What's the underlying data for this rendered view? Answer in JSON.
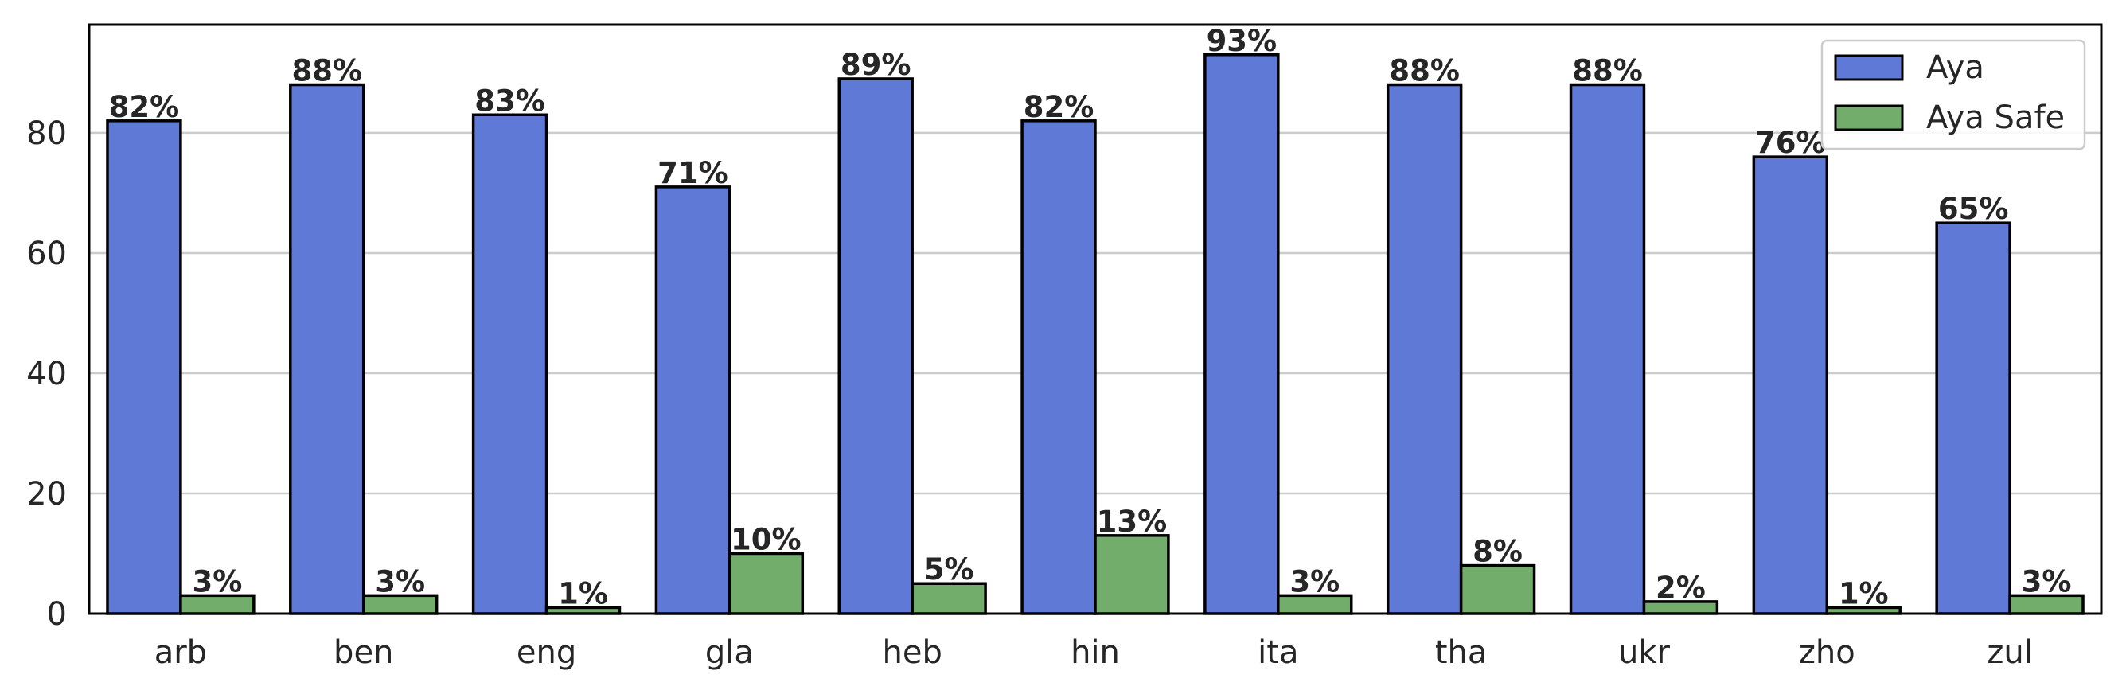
{
  "chart_data": {
    "type": "bar",
    "categories": [
      "arb",
      "ben",
      "eng",
      "gla",
      "heb",
      "hin",
      "ita",
      "tha",
      "ukr",
      "zho",
      "zul"
    ],
    "series": [
      {
        "name": "Aya",
        "values": [
          82,
          88,
          83,
          71,
          89,
          82,
          93,
          88,
          88,
          76,
          65
        ],
        "labels": [
          "82%",
          "88%",
          "83%",
          "71%",
          "89%",
          "82%",
          "93%",
          "88%",
          "88%",
          "76%",
          "65%"
        ],
        "color": "#5f7ad6"
      },
      {
        "name": "Aya Safe",
        "values": [
          3,
          3,
          1,
          10,
          5,
          13,
          3,
          8,
          2,
          1,
          3
        ],
        "labels": [
          "3%",
          "3%",
          "1%",
          "10%",
          "5%",
          "13%",
          "3%",
          "8%",
          "2%",
          "1%",
          "3%"
        ],
        "color": "#73ad6c"
      }
    ],
    "title": "",
    "xlabel": "",
    "ylabel": "",
    "ylim": [
      0,
      98
    ],
    "yticks": [
      0,
      20,
      40,
      60,
      80
    ],
    "ytick_labels": [
      "0",
      "20",
      "40",
      "60",
      "80"
    ],
    "grid": "horizontal",
    "legend_position": "top-right"
  }
}
